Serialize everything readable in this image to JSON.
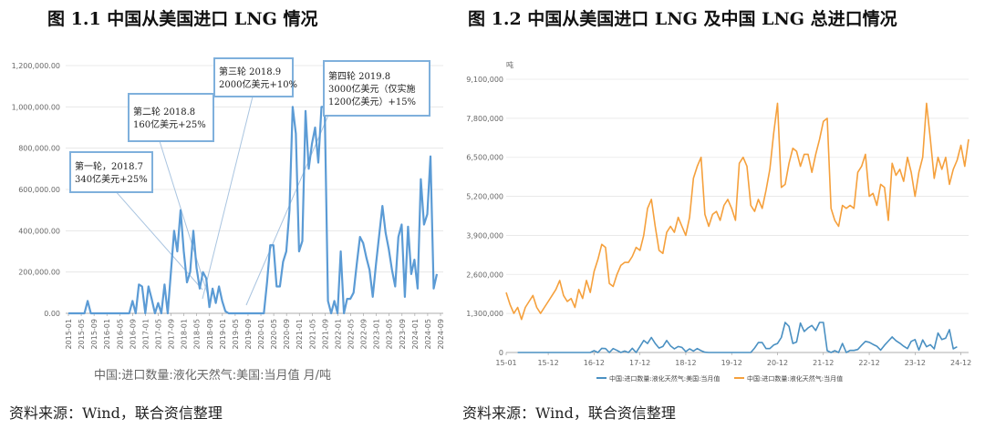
{
  "figure1": {
    "title": "图 1.1    中国从美国进口 LNG 情况",
    "source": "资料来源：Wind，联合资信整理"
  },
  "figure2": {
    "title": "图 1.2    中国从美国进口 LNG 及中国 LNG 总进口情况",
    "source": "资料来源：Wind，联合资信整理"
  },
  "chart_data": [
    {
      "type": "line",
      "title": "中国从美国进口 LNG 情况",
      "legend": "中国:进口数量:液化天然气:美国:当月值 月/吨",
      "color": "#5b9bd5",
      "ylim": [
        0,
        1200000
      ],
      "y_ticks": [
        "0.00",
        "200,000.00",
        "400,000.00",
        "600,000.00",
        "800,000.00",
        "1,000,000.00",
        "1,200,000.00"
      ],
      "x_ticks": [
        "2015-01",
        "2015-05",
        "2015-09",
        "2016-01",
        "2016-05",
        "2016-09",
        "2017-01",
        "2017-05",
        "2017-09",
        "2018-01",
        "2018-05",
        "2018-09",
        "2019-01",
        "2019-05",
        "2019-09",
        "2020-01",
        "2020-05",
        "2020-09",
        "2021-01",
        "2021-05",
        "2021-09",
        "2022-01",
        "2022-05",
        "2022-09",
        "2023-01",
        "2023-05",
        "2023-09",
        "2024-01",
        "2024-05",
        "2024-09"
      ],
      "x_start": "2015-01",
      "values": [
        0,
        0,
        0,
        0,
        0,
        0,
        60000,
        0,
        0,
        0,
        0,
        0,
        0,
        0,
        0,
        0,
        0,
        0,
        0,
        0,
        60000,
        0,
        140000,
        130000,
        0,
        130000,
        70000,
        0,
        50000,
        0,
        140000,
        0,
        200000,
        400000,
        300000,
        500000,
        300000,
        150000,
        200000,
        400000,
        220000,
        120000,
        200000,
        170000,
        30000,
        120000,
        50000,
        130000,
        60000,
        10000,
        0,
        0,
        0,
        0,
        0,
        0,
        0,
        0,
        0,
        0,
        0,
        0,
        150000,
        330000,
        330000,
        130000,
        130000,
        250000,
        300000,
        500000,
        1000000,
        870000,
        300000,
        350000,
        980000,
        700000,
        820000,
        900000,
        730000,
        1000000,
        1000000,
        60000,
        0,
        60000,
        0,
        300000,
        0,
        70000,
        70000,
        100000,
        240000,
        370000,
        340000,
        270000,
        210000,
        80000,
        240000,
        380000,
        520000,
        390000,
        310000,
        210000,
        130000,
        370000,
        430000,
        80000,
        420000,
        190000,
        260000,
        120000,
        650000,
        430000,
        480000,
        760000,
        120000,
        190000
      ],
      "annotations": [
        {
          "line1": "第一轮，2018.7",
          "line2": "340亿美元+25%"
        },
        {
          "line1": "第二轮 2018.8",
          "line2": "160亿美元+25%"
        },
        {
          "line1": "第三轮  2018.9",
          "line2": "2000亿美元+10%"
        },
        {
          "line1": "第四轮 2019.8",
          "line2": " 3000亿美元（仅实施",
          "line3": "1200亿美元）+15%"
        }
      ]
    },
    {
      "type": "line",
      "title": "中国从美国进口 LNG 及中国 LNG 总进口情况",
      "unit_label": "吨",
      "ylim": [
        0,
        9100000
      ],
      "y_ticks": [
        "0",
        "1,300,000",
        "2,600,000",
        "3,900,000",
        "5,200,000",
        "6,500,000",
        "7,800,000",
        "9,100,000"
      ],
      "x_ticks": [
        "15-01",
        "15-12",
        "16-12",
        "17-12",
        "18-12",
        "19-12",
        "20-12",
        "21-12",
        "22-12",
        "23-12",
        "24-12"
      ],
      "series": [
        {
          "name": "中国:进口数量:液化天然气:美国:当月值",
          "color": "#4a90c2",
          "x_start_index": 3,
          "values": [
            0,
            0,
            0,
            0,
            0,
            0,
            0,
            0,
            0,
            0,
            0,
            0,
            0,
            0,
            0,
            0,
            0,
            0,
            0,
            0,
            60000,
            0,
            140000,
            130000,
            0,
            130000,
            70000,
            0,
            50000,
            0,
            140000,
            0,
            200000,
            400000,
            300000,
            500000,
            300000,
            150000,
            200000,
            400000,
            220000,
            120000,
            200000,
            170000,
            30000,
            120000,
            50000,
            130000,
            60000,
            10000,
            0,
            0,
            0,
            0,
            0,
            0,
            0,
            0,
            0,
            0,
            0,
            0,
            150000,
            330000,
            330000,
            130000,
            130000,
            250000,
            300000,
            500000,
            1000000,
            870000,
            300000,
            350000,
            980000,
            700000,
            820000,
            900000,
            730000,
            1000000,
            1000000,
            60000,
            0,
            60000,
            0,
            300000,
            0,
            70000,
            70000,
            100000,
            240000,
            370000,
            340000,
            270000,
            210000,
            80000,
            240000,
            380000,
            520000,
            390000,
            310000,
            210000,
            130000,
            370000,
            430000,
            80000,
            420000,
            190000,
            260000,
            120000,
            650000,
            430000,
            480000,
            760000,
            120000,
            190000
          ]
        },
        {
          "name": "中国:进口数量:液化天然气:当月值",
          "color": "#f5a03c",
          "x_start_index": 0,
          "values": [
            2000000,
            1600000,
            1300000,
            1500000,
            1100000,
            1500000,
            1700000,
            1900000,
            1500000,
            1300000,
            1500000,
            1700000,
            1900000,
            2100000,
            2400000,
            1900000,
            1700000,
            1800000,
            1500000,
            2100000,
            1800000,
            2400000,
            2000000,
            2700000,
            3100000,
            3600000,
            3500000,
            2300000,
            2200000,
            2600000,
            2900000,
            3000000,
            3000000,
            3200000,
            3500000,
            3400000,
            3900000,
            4800000,
            5100000,
            4200000,
            3400000,
            3300000,
            4000000,
            4200000,
            4000000,
            4500000,
            4200000,
            3900000,
            4500000,
            5800000,
            6200000,
            6500000,
            4600000,
            4200000,
            4600000,
            4700000,
            4400000,
            4900000,
            5100000,
            4800000,
            4400000,
            6300000,
            6500000,
            6200000,
            4900000,
            4700000,
            5100000,
            4800000,
            5400000,
            6100000,
            7300000,
            8300000,
            5500000,
            5600000,
            6300000,
            6800000,
            6700000,
            6200000,
            6600000,
            6600000,
            6000000,
            6600000,
            7100000,
            7700000,
            7800000,
            4800000,
            4400000,
            4200000,
            4900000,
            4800000,
            4900000,
            4800000,
            6000000,
            6200000,
            6600000,
            5200000,
            5300000,
            4900000,
            5600000,
            5500000,
            4400000,
            6300000,
            5900000,
            6100000,
            5700000,
            6500000,
            6000000,
            5200000,
            6000000,
            6500000,
            8300000,
            7100000,
            5800000,
            6500000,
            6100000,
            6500000,
            5600000,
            6100000,
            6400000,
            6900000,
            6200000,
            7100000
          ]
        }
      ]
    }
  ]
}
